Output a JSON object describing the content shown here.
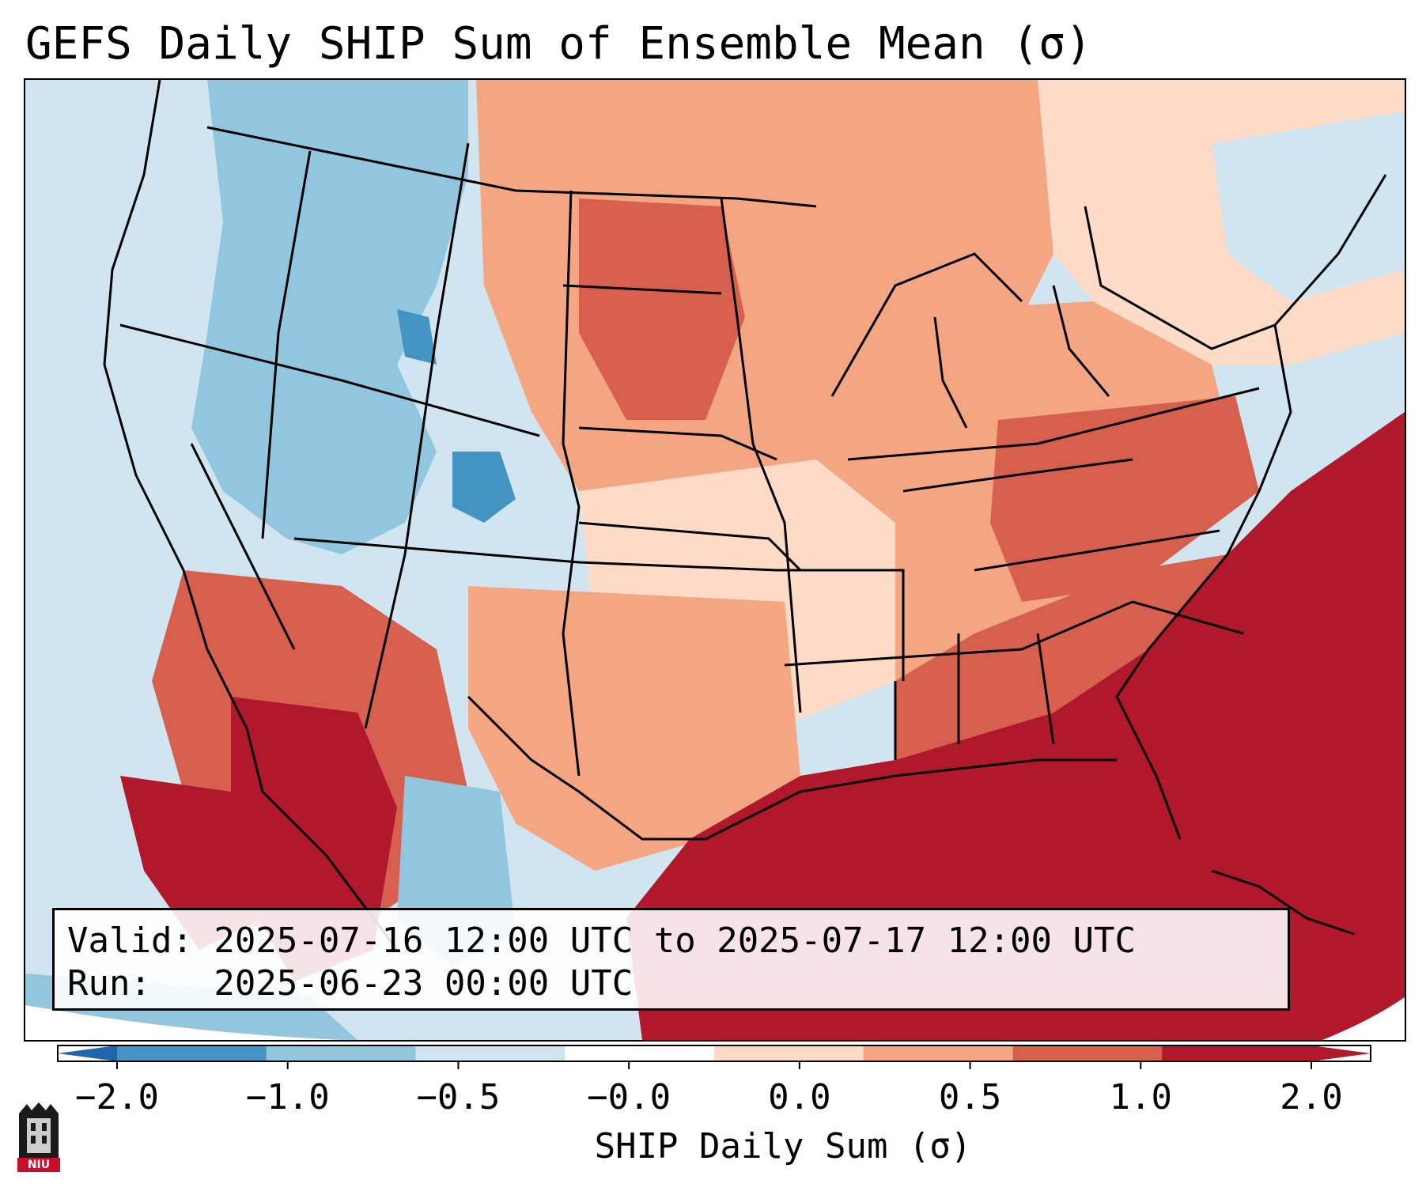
{
  "title": "GEFS Daily SHIP Sum of Ensemble Mean (σ)",
  "info": {
    "valid_line": "Valid: 2025-07-16 12:00 UTC to 2025-07-17 12:00 UTC",
    "run_line": "Run:   2025-06-23 00:00 UTC"
  },
  "colorbar": {
    "label": "SHIP Daily Sum (σ)",
    "ticks": [
      "−2.0",
      "−1.0",
      "−0.5",
      "−0.0",
      "0.0",
      "0.5",
      "1.0",
      "2.0"
    ],
    "colors": [
      "#4393c3",
      "#92c5de",
      "#d1e5f0",
      "#ffffff",
      "#fddbc7",
      "#f4a582",
      "#d6604d",
      "#b2182b"
    ],
    "extend_low_color": "#2166ac",
    "extend_high_color": "#b2182b"
  },
  "legend_colors": {
    "strong_negative": "#4393c3",
    "moderate_negative": "#92c5de",
    "weak_negative": "#d1e5f0",
    "weak_positive": "#fddbc7",
    "moderate_positive": "#f4a582",
    "strong_positive": "#d6604d",
    "very_strong_positive": "#b2182b"
  },
  "logo": {
    "text": "NIU",
    "icon": "niu-tower-logo-icon"
  }
}
